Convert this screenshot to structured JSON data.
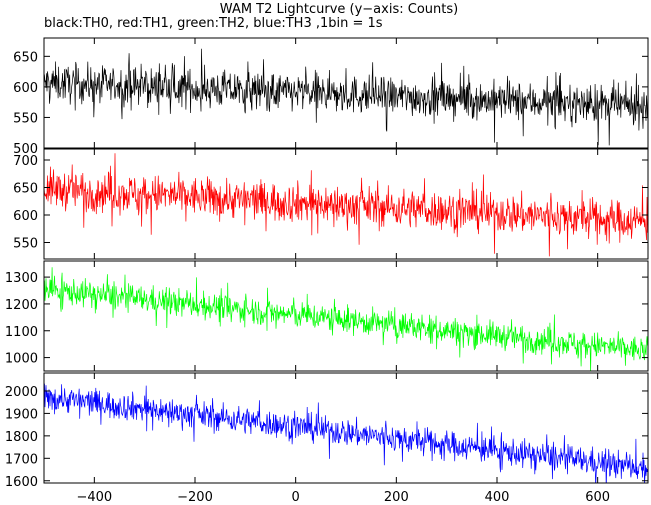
{
  "chart_data": {
    "type": "line",
    "title": "WAM T2 Lightcurve (y−axis: Counts)",
    "subtitle": "black:TH0, red:TH1, green:TH2, blue:TH3 ,1bin = 1s",
    "xlabel": "",
    "ylabel": "",
    "xlim": [
      -500,
      700
    ],
    "x_ticks": [
      -400,
      -200,
      0,
      200,
      400,
      600
    ],
    "x_tick_labels": [
      "−400",
      "−200",
      "0",
      "200",
      "400",
      "600"
    ],
    "bin_seconds": 1,
    "grid": false,
    "panels": [
      {
        "series_label": "TH0",
        "color": "#000000",
        "ylim": [
          500,
          680
        ],
        "y_ticks": [
          500,
          550,
          600,
          650
        ],
        "trend": {
          "x": [
            -500,
            700
          ],
          "y": [
            607,
            568
          ]
        },
        "noise_amplitude": 28
      },
      {
        "series_label": "TH1",
        "color": "#ff0000",
        "ylim": [
          520,
          720
        ],
        "y_ticks": [
          550,
          600,
          650,
          700
        ],
        "trend": {
          "x": [
            -500,
            700
          ],
          "y": [
            648,
            588
          ]
        },
        "noise_amplitude": 32
      },
      {
        "series_label": "TH2",
        "color": "#00ff00",
        "ylim": [
          950,
          1360
        ],
        "y_ticks": [
          1000,
          1100,
          1200,
          1300
        ],
        "trend": {
          "x": [
            -500,
            700
          ],
          "y": [
            1255,
            1025
          ]
        },
        "noise_amplitude": 45
      },
      {
        "series_label": "TH3",
        "color": "#0000ff",
        "ylim": [
          1590,
          2080
        ],
        "y_ticks": [
          1600,
          1700,
          1800,
          1900,
          2000
        ],
        "trend": {
          "x": [
            -500,
            700
          ],
          "y": [
            1975,
            1655
          ]
        },
        "noise_amplitude": 55
      }
    ]
  }
}
